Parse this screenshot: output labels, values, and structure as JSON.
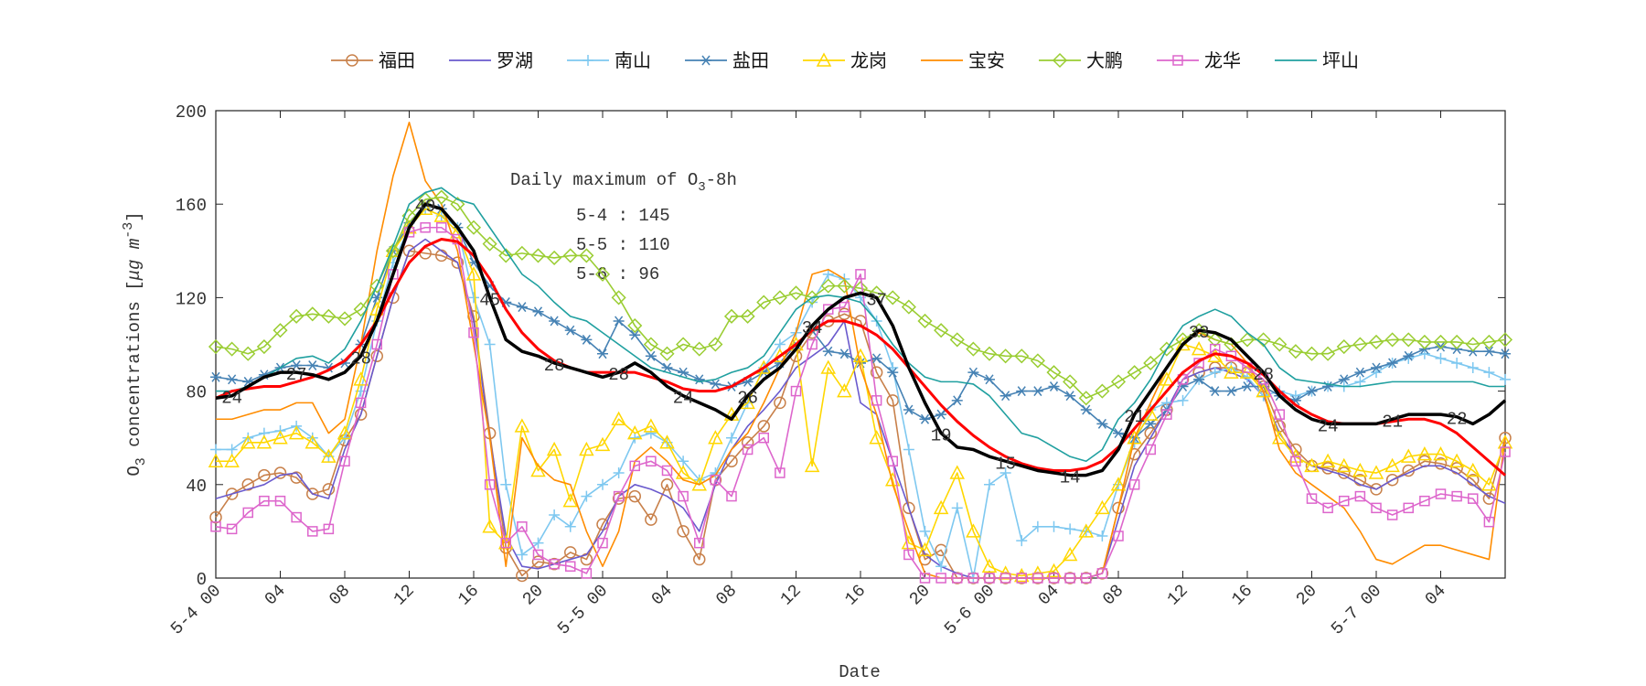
{
  "chart_data": {
    "type": "line",
    "xlabel": "Date",
    "ylabel": {
      "pre": "O",
      "sub": "3",
      "mid": " concentrations [",
      "mu": "μg m",
      "sup": "-3",
      "post": "]"
    },
    "annotation": {
      "title_pre": "Daily maximum of O",
      "title_sub": "3",
      "title_post": "-8h",
      "lines": [
        "5-4 : 145",
        "5-5 : 110",
        "5-6 : 96"
      ]
    },
    "xlim": [
      0,
      80
    ],
    "ylim": [
      0,
      200
    ],
    "yticks": [
      0,
      40,
      80,
      120,
      160,
      200
    ],
    "xticks": [
      {
        "value": 0,
        "label": "5-4 00"
      },
      {
        "value": 4,
        "label": "04"
      },
      {
        "value": 8,
        "label": "08"
      },
      {
        "value": 12,
        "label": "12"
      },
      {
        "value": 16,
        "label": "16"
      },
      {
        "value": 20,
        "label": "20"
      },
      {
        "value": 24,
        "label": "5-5 00"
      },
      {
        "value": 28,
        "label": "04"
      },
      {
        "value": 32,
        "label": "08"
      },
      {
        "value": 36,
        "label": "12"
      },
      {
        "value": 40,
        "label": "16"
      },
      {
        "value": 44,
        "label": "20"
      },
      {
        "value": 48,
        "label": "5-6 00"
      },
      {
        "value": 52,
        "label": "04"
      },
      {
        "value": 56,
        "label": "08"
      },
      {
        "value": 60,
        "label": "12"
      },
      {
        "value": 64,
        "label": "16"
      },
      {
        "value": 68,
        "label": "20"
      },
      {
        "value": 72,
        "label": "5-7 00"
      },
      {
        "value": 76,
        "label": "04"
      }
    ],
    "x": [
      0,
      1,
      2,
      3,
      4,
      5,
      6,
      7,
      8,
      9,
      10,
      11,
      12,
      13,
      14,
      15,
      16,
      17,
      18,
      19,
      20,
      21,
      22,
      23,
      24,
      25,
      26,
      27,
      28,
      29,
      30,
      31,
      32,
      33,
      34,
      35,
      36,
      37,
      38,
      39,
      40,
      41,
      42,
      43,
      44,
      45,
      46,
      47,
      48,
      49,
      50,
      51,
      52,
      53,
      54,
      55,
      56,
      57,
      58,
      59,
      60,
      61,
      62,
      63,
      64,
      65,
      66,
      67,
      68,
      69,
      70,
      71,
      72,
      73,
      74,
      75,
      76,
      77,
      78,
      79,
      80
    ],
    "series": [
      {
        "name": "福田",
        "color": "#c8804a",
        "marker": "circle",
        "values": [
          26,
          36,
          40,
          44,
          45,
          43,
          36,
          38,
          59,
          70,
          95,
          120,
          140,
          139,
          138,
          135,
          112,
          62,
          13,
          1,
          7,
          6,
          11,
          8,
          23,
          34,
          35,
          25,
          40,
          20,
          8,
          42,
          50,
          58,
          65,
          75,
          95,
          105,
          110,
          113,
          110,
          88,
          76,
          30,
          8,
          12,
          0,
          0,
          0,
          0,
          0,
          0,
          0,
          0,
          0,
          2,
          30,
          53,
          62,
          72,
          85,
          88,
          90,
          90,
          88,
          82,
          65,
          55,
          48,
          47,
          45,
          42,
          38,
          42,
          46,
          50,
          49,
          47,
          42,
          34,
          60
        ]
      },
      {
        "name": "罗湖",
        "color": "#6a5acd",
        "marker": "none",
        "values": [
          34,
          36,
          38,
          40,
          44,
          45,
          36,
          34,
          55,
          70,
          95,
          120,
          140,
          145,
          140,
          135,
          110,
          60,
          18,
          5,
          4,
          6,
          8,
          10,
          20,
          35,
          40,
          38,
          35,
          30,
          20,
          40,
          55,
          65,
          72,
          80,
          90,
          95,
          100,
          110,
          75,
          70,
          50,
          30,
          10,
          5,
          2,
          0,
          0,
          0,
          0,
          0,
          0,
          0,
          0,
          2,
          25,
          48,
          60,
          72,
          85,
          88,
          90,
          88,
          85,
          78,
          62,
          52,
          48,
          46,
          44,
          40,
          38,
          42,
          45,
          48,
          48,
          45,
          40,
          35,
          32
        ]
      },
      {
        "name": "南山",
        "color": "#7ec8f0",
        "marker": "plus",
        "values": [
          55,
          55,
          60,
          62,
          63,
          65,
          60,
          52,
          60,
          80,
          110,
          135,
          150,
          158,
          155,
          150,
          120,
          100,
          40,
          10,
          15,
          27,
          22,
          35,
          40,
          45,
          60,
          62,
          58,
          50,
          42,
          45,
          60,
          75,
          90,
          100,
          105,
          118,
          130,
          128,
          120,
          110,
          90,
          55,
          20,
          5,
          30,
          0,
          40,
          45,
          16,
          22,
          22,
          21,
          20,
          18,
          40,
          58,
          72,
          75,
          76,
          85,
          88,
          90,
          86,
          78,
          80,
          78,
          80,
          82,
          82,
          84,
          88,
          92,
          94,
          96,
          94,
          92,
          90,
          88,
          85
        ]
      },
      {
        "name": "盐田",
        "color": "#4682b4",
        "marker": "asterisk",
        "values": [
          86,
          85,
          84,
          87,
          90,
          91,
          91,
          90,
          92,
          100,
          120,
          140,
          152,
          160,
          158,
          150,
          135,
          125,
          118,
          116,
          114,
          110,
          106,
          102,
          96,
          110,
          104,
          95,
          90,
          88,
          85,
          83,
          82,
          84,
          88,
          92,
          100,
          106,
          97,
          96,
          92,
          94,
          88,
          72,
          68,
          70,
          76,
          88,
          85,
          78,
          80,
          80,
          82,
          78,
          72,
          66,
          62,
          60,
          66,
          72,
          82,
          85,
          80,
          80,
          82,
          82,
          78,
          76,
          80,
          82,
          85,
          88,
          90,
          92,
          95,
          98,
          99,
          98,
          97,
          97,
          96
        ]
      },
      {
        "name": "龙岗",
        "color": "#ffd700",
        "marker": "triangle",
        "values": [
          50,
          50,
          58,
          58,
          60,
          62,
          58,
          52,
          62,
          85,
          115,
          140,
          150,
          158,
          155,
          148,
          130,
          22,
          15,
          65,
          46,
          55,
          33,
          55,
          57,
          68,
          62,
          65,
          58,
          45,
          40,
          60,
          70,
          75,
          90,
          95,
          100,
          48,
          90,
          80,
          95,
          60,
          42,
          15,
          12,
          30,
          45,
          20,
          5,
          2,
          1,
          2,
          3,
          10,
          20,
          30,
          40,
          60,
          70,
          85,
          100,
          98,
          95,
          88,
          88,
          80,
          60,
          52,
          48,
          50,
          48,
          46,
          45,
          48,
          52,
          53,
          53,
          50,
          46,
          40,
          58
        ]
      },
      {
        "name": "宝安",
        "color": "#ff8c00",
        "marker": "none",
        "values": [
          68,
          68,
          70,
          72,
          72,
          75,
          75,
          62,
          68,
          100,
          140,
          172,
          195,
          170,
          160,
          140,
          100,
          60,
          5,
          60,
          48,
          42,
          40,
          20,
          5,
          20,
          50,
          56,
          50,
          42,
          40,
          44,
          55,
          62,
          75,
          90,
          105,
          130,
          132,
          128,
          90,
          70,
          40,
          20,
          2,
          0,
          0,
          0,
          0,
          0,
          0,
          0,
          0,
          0,
          0,
          2,
          30,
          60,
          75,
          90,
          100,
          105,
          102,
          100,
          92,
          80,
          55,
          45,
          40,
          35,
          30,
          20,
          8,
          6,
          10,
          14,
          14,
          12,
          10,
          8,
          60
        ]
      },
      {
        "name": "大鹏",
        "color": "#9acd32",
        "marker": "diamond",
        "values": [
          99,
          98,
          96,
          99,
          106,
          112,
          113,
          112,
          111,
          115,
          125,
          140,
          155,
          162,
          163,
          160,
          150,
          143,
          138,
          139,
          138,
          137,
          138,
          138,
          130,
          120,
          108,
          100,
          96,
          100,
          98,
          100,
          112,
          112,
          118,
          120,
          122,
          120,
          125,
          125,
          124,
          122,
          120,
          116,
          110,
          106,
          102,
          98,
          96,
          95,
          95,
          93,
          88,
          84,
          77,
          80,
          84,
          88,
          92,
          98,
          102,
          106,
          102,
          100,
          102,
          102,
          100,
          97,
          96,
          96,
          99,
          100,
          101,
          102,
          102,
          101,
          101,
          101,
          100,
          101,
          102
        ]
      },
      {
        "name": "龙华",
        "color": "#dd66cc",
        "marker": "square",
        "values": [
          22,
          21,
          28,
          33,
          33,
          26,
          20,
          21,
          50,
          75,
          100,
          130,
          148,
          150,
          150,
          145,
          105,
          40,
          15,
          22,
          10,
          6,
          5,
          2,
          15,
          35,
          48,
          50,
          46,
          35,
          15,
          42,
          35,
          55,
          60,
          45,
          80,
          100,
          115,
          116,
          130,
          76,
          50,
          10,
          0,
          0,
          0,
          0,
          0,
          0,
          0,
          0,
          0,
          0,
          0,
          2,
          18,
          40,
          55,
          70,
          85,
          92,
          98,
          95,
          90,
          85,
          70,
          50,
          34,
          30,
          33,
          35,
          30,
          27,
          30,
          33,
          36,
          35,
          34,
          24,
          54
        ]
      },
      {
        "name": "坪山",
        "color": "#20a0a0",
        "marker": "none",
        "values": [
          80,
          80,
          82,
          86,
          90,
          94,
          95,
          92,
          98,
          110,
          125,
          142,
          160,
          165,
          167,
          162,
          160,
          150,
          140,
          130,
          125,
          118,
          112,
          110,
          105,
          100,
          95,
          90,
          88,
          86,
          84,
          85,
          88,
          90,
          95,
          105,
          115,
          120,
          121,
          120,
          118,
          110,
          100,
          92,
          86,
          84,
          84,
          83,
          78,
          70,
          62,
          60,
          56,
          52,
          50,
          55,
          68,
          75,
          85,
          98,
          108,
          112,
          115,
          112,
          105,
          100,
          90,
          85,
          84,
          83,
          82,
          82,
          83,
          84,
          84,
          84,
          84,
          84,
          84,
          82,
          82
        ]
      },
      {
        "color": "#ff0000",
        "width": 3,
        "marker": "none",
        "values": [
          77,
          80,
          81,
          82,
          82,
          84,
          86,
          89,
          93,
          100,
          110,
          123,
          135,
          142,
          145,
          144,
          138,
          128,
          115,
          105,
          98,
          93,
          90,
          88,
          88,
          88,
          88,
          86,
          84,
          81,
          80,
          80,
          82,
          86,
          90,
          95,
          100,
          106,
          110,
          110,
          108,
          104,
          98,
          90,
          82,
          74,
          67,
          61,
          56,
          52,
          49,
          47,
          46,
          46,
          47,
          50,
          56,
          64,
          72,
          80,
          88,
          93,
          96,
          95,
          92,
          87,
          80,
          74,
          70,
          67,
          66,
          66,
          66,
          67,
          68,
          68,
          66,
          62,
          56,
          50,
          44
        ]
      },
      {
        "color": "#000000",
        "width": 3.5,
        "marker": "none",
        "values": [
          77,
          78,
          82,
          86,
          88,
          88,
          87,
          85,
          88,
          95,
          110,
          130,
          150,
          160,
          158,
          150,
          140,
          120,
          102,
          97,
          95,
          92,
          90,
          88,
          86,
          88,
          92,
          88,
          82,
          78,
          75,
          72,
          68,
          78,
          85,
          90,
          98,
          108,
          115,
          120,
          122,
          120,
          108,
          90,
          75,
          62,
          56,
          55,
          52,
          50,
          48,
          46,
          45,
          44,
          44,
          46,
          55,
          70,
          80,
          90,
          100,
          106,
          105,
          102,
          95,
          88,
          78,
          72,
          68,
          66,
          66,
          66,
          66,
          68,
          70,
          70,
          70,
          69,
          66,
          70,
          76
        ]
      }
    ],
    "point_labels": {
      "x": [
        1,
        5,
        9,
        13,
        17,
        21,
        25,
        29,
        33,
        37,
        41,
        45,
        49,
        53,
        57,
        61,
        65,
        69,
        73,
        77
      ],
      "values": [
        24,
        27,
        28,
        49,
        45,
        28,
        28,
        24,
        26,
        34,
        37,
        19,
        15,
        14,
        21,
        33,
        28,
        24,
        21,
        22
      ]
    }
  }
}
